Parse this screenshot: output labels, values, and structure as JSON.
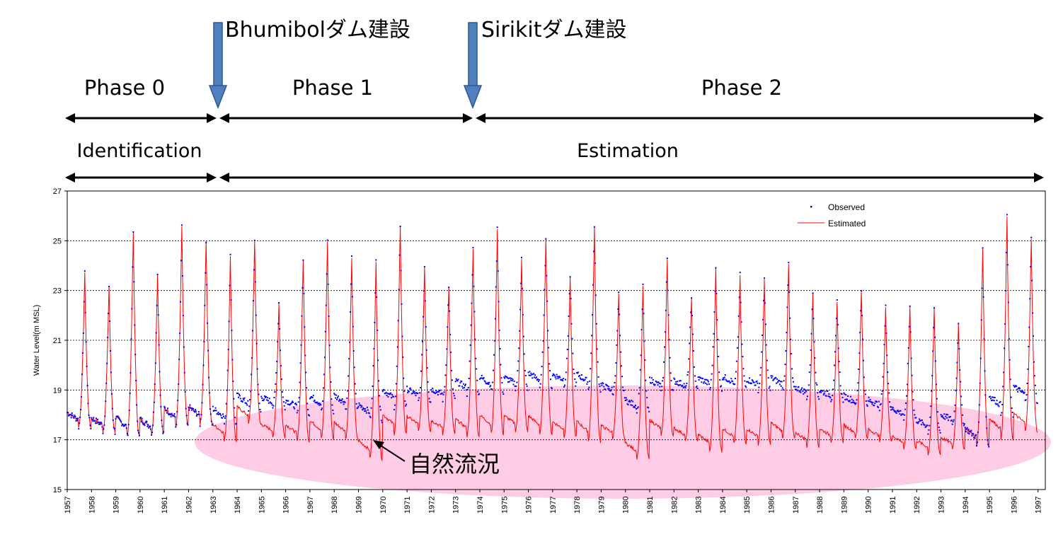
{
  "annotations": {
    "bhumibol_label": "Bhumibolダム建設",
    "sirikit_label": "Sirikitダム建設",
    "phase0": "Phase 0",
    "phase1": "Phase 1",
    "phase2": "Phase 2",
    "identification": "Identification",
    "estimation": "Estimation",
    "natural_flow": "自然流況",
    "arrow_color": "#4f81bd",
    "ellipse_color": "#ffcce6"
  },
  "chart_data": {
    "type": "line",
    "title": "",
    "xlabel": "",
    "ylabel": "Water Level(m MSL)",
    "ylim": [
      15,
      27
    ],
    "yticks": [
      15,
      17,
      19,
      21,
      23,
      25,
      27
    ],
    "xlim": [
      1957,
      1997.3
    ],
    "xticks": [
      "1957",
      "1958",
      "1959",
      "1960",
      "1961",
      "1962",
      "1963",
      "1964",
      "1965",
      "1966",
      "1967",
      "1968",
      "1969",
      "1970",
      "1971",
      "1972",
      "1973",
      "1974",
      "1975",
      "1976",
      "1977",
      "1978",
      "1979",
      "1980",
      "1981",
      "1982",
      "1983",
      "1984",
      "1985",
      "1986",
      "1987",
      "1988",
      "1989",
      "1990",
      "1991",
      "1992",
      "1993",
      "1994",
      "1995",
      "1996",
      "1997"
    ],
    "grid": "horizontal-dashed",
    "legend": "top-right",
    "series": [
      {
        "name": "Observed",
        "style": "points",
        "color": "#0000ff"
      },
      {
        "name": "Estimated",
        "style": "line",
        "color": "#ff0000"
      }
    ],
    "x": [
      "1957",
      "1958",
      "1959",
      "1960",
      "1961",
      "1962",
      "1963",
      "1964",
      "1965",
      "1966",
      "1967",
      "1968",
      "1969",
      "1970",
      "1971",
      "1972",
      "1973",
      "1974",
      "1975",
      "1976",
      "1977",
      "1978",
      "1979",
      "1980",
      "1981",
      "1982",
      "1983",
      "1984",
      "1985",
      "1986",
      "1987",
      "1988",
      "1989",
      "1990",
      "1991",
      "1992",
      "1993",
      "1994",
      "1995",
      "1996"
    ],
    "annual_peak": [
      23.8,
      23.3,
      25.5,
      23.8,
      25.7,
      25.2,
      24.5,
      25.2,
      22.6,
      24.4,
      25.1,
      24.4,
      24.3,
      25.8,
      24.1,
      23.3,
      24.8,
      25.6,
      24.4,
      25.3,
      23.7,
      25.8,
      23.0,
      23.3,
      24.4,
      22.9,
      24.1,
      23.7,
      23.6,
      24.2,
      23.0,
      22.6,
      23.2,
      22.4,
      22.5,
      22.4,
      21.8,
      24.8,
      26.1,
      25.2
    ],
    "annual_min_observed": [
      17.5,
      17.3,
      17.1,
      17.2,
      17.5,
      17.6,
      17.6,
      18.1,
      18.3,
      18.0,
      18.1,
      18.2,
      17.8,
      18.3,
      18.5,
      18.6,
      18.8,
      18.9,
      19.0,
      19.1,
      19.2,
      19.0,
      18.8,
      18.1,
      18.9,
      19.0,
      19.0,
      19.1,
      19.0,
      19.0,
      18.7,
      18.6,
      18.3,
      18.2,
      17.8,
      17.3,
      17.6,
      16.7,
      18.0,
      18.5
    ],
    "annual_min_estimated": [
      17.5,
      17.3,
      17.1,
      17.2,
      17.5,
      17.6,
      16.9,
      17.6,
      17.1,
      16.9,
      17.0,
      17.0,
      16.2,
      17.2,
      17.3,
      17.2,
      17.1,
      17.2,
      17.3,
      17.2,
      17.1,
      16.9,
      17.0,
      16.2,
      17.1,
      16.9,
      16.5,
      16.8,
      16.8,
      17.0,
      16.7,
      16.9,
      17.0,
      16.9,
      16.6,
      16.4,
      16.6,
      16.7,
      17.0,
      17.3
    ]
  }
}
